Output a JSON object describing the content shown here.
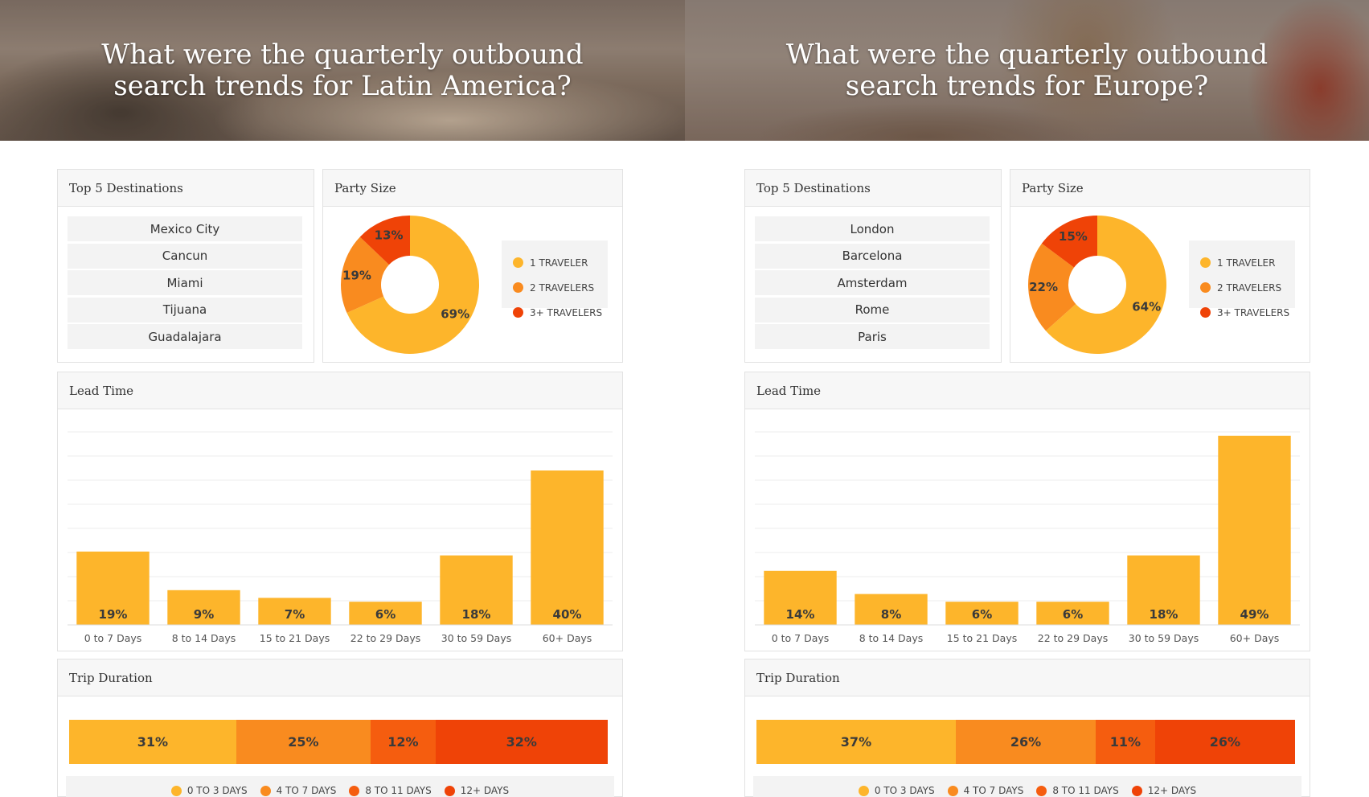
{
  "colors": {
    "c1": "#fdb52b",
    "c2": "#f98b1f",
    "c3": "#f55d0f",
    "c4": "#ef4307",
    "grid": "#eeeeee"
  },
  "sections": [
    {
      "hero_line1": "What were the quarterly outbound",
      "hero_line2": "search trends for Latin America?",
      "destinations_title": "Top 5 Destinations",
      "destinations": [
        "Mexico City",
        "Cancun",
        "Miami",
        "Tijuana",
        "Guadalajara"
      ],
      "party_title": "Party Size",
      "party_legend": [
        "1 TRAVELER",
        "2 TRAVELERS",
        "3+ TRAVELERS"
      ],
      "lead_title": "Lead Time",
      "trip_title": "Trip Duration",
      "trip_legend": [
        "0 TO 3 DAYS",
        "4 TO 7 DAYS",
        "8 TO 11 DAYS",
        "12+ DAYS"
      ]
    },
    {
      "hero_line1": "What were the quarterly outbound",
      "hero_line2": "search trends for Europe?",
      "destinations_title": "Top 5 Destinations",
      "destinations": [
        "London",
        "Barcelona",
        "Amsterdam",
        "Rome",
        "Paris"
      ],
      "party_title": "Party Size",
      "party_legend": [
        "1 TRAVELER",
        "2 TRAVELERS",
        "3+ TRAVELERS"
      ],
      "lead_title": "Lead Time",
      "trip_title": "Trip Duration",
      "trip_legend": [
        "0 TO 3 DAYS",
        "4 TO 7 DAYS",
        "8 TO 11 DAYS",
        "12+ DAYS"
      ]
    }
  ],
  "chart_data": [
    {
      "region": "Latin America",
      "title": "Party Size",
      "type": "pie",
      "categories": [
        "1 TRAVELER",
        "2 TRAVELERS",
        "3+ TRAVELERS"
      ],
      "values": [
        69,
        19,
        13
      ],
      "unit": "%"
    },
    {
      "region": "Latin America",
      "title": "Lead Time",
      "type": "bar",
      "categories": [
        "0 to 7 Days",
        "8 to 14 Days",
        "15 to 21 Days",
        "22 to 29 Days",
        "30 to 59 Days",
        "60+ Days"
      ],
      "values": [
        19,
        9,
        7,
        6,
        18,
        40
      ],
      "unit": "%",
      "ylim": [
        0,
        50
      ],
      "grid": true
    },
    {
      "region": "Latin America",
      "title": "Trip Duration",
      "type": "bar",
      "orientation": "stacked-horizontal",
      "categories": [
        "0 TO 3 DAYS",
        "4 TO 7 DAYS",
        "8 TO 11 DAYS",
        "12+ DAYS"
      ],
      "values": [
        31,
        25,
        12,
        32
      ],
      "unit": "%",
      "legend": "bottom"
    },
    {
      "region": "Europe",
      "title": "Party Size",
      "type": "pie",
      "categories": [
        "1 TRAVELER",
        "2 TRAVELERS",
        "3+ TRAVELERS"
      ],
      "values": [
        64,
        22,
        15
      ],
      "unit": "%"
    },
    {
      "region": "Europe",
      "title": "Lead Time",
      "type": "bar",
      "categories": [
        "0 to 7 Days",
        "8 to 14 Days",
        "15 to 21 Days",
        "22 to 29 Days",
        "30 to 59 Days",
        "60+ Days"
      ],
      "values": [
        14,
        8,
        6,
        6,
        18,
        49
      ],
      "unit": "%",
      "ylim": [
        0,
        50
      ],
      "grid": true
    },
    {
      "region": "Europe",
      "title": "Trip Duration",
      "type": "bar",
      "orientation": "stacked-horizontal",
      "categories": [
        "0 TO 3 DAYS",
        "4 TO 7 DAYS",
        "8 TO 11 DAYS",
        "12+ DAYS"
      ],
      "values": [
        37,
        26,
        11,
        26
      ],
      "unit": "%",
      "legend": "bottom"
    }
  ]
}
